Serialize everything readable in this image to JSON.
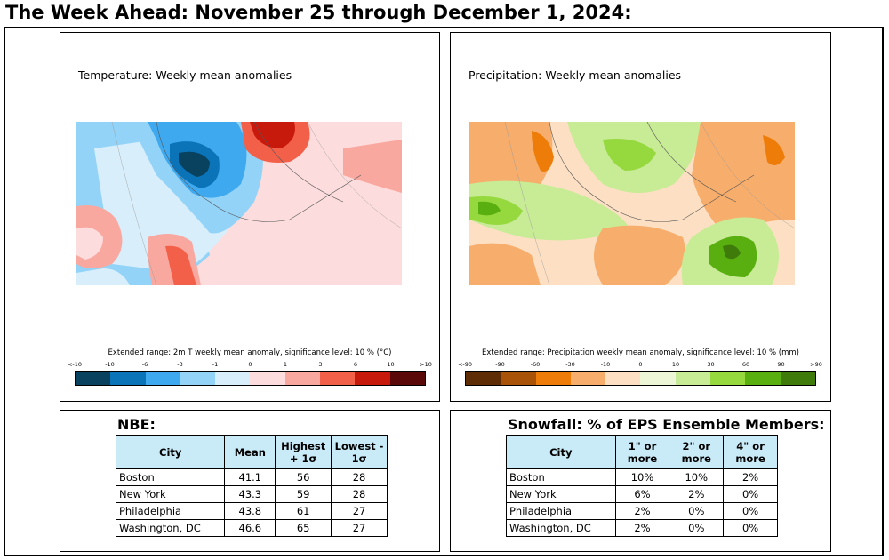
{
  "title": "The Week Ahead: November 25 through December 1, 2024:",
  "temperature_panel": {
    "map_title": "Temperature: Weekly mean anomalies",
    "colorbar_label": "Extended range: 2m T weekly mean anomaly, significance level: 10 % (°C)",
    "ticks": [
      "<-10",
      "-10",
      "-6",
      "-3",
      "-1",
      "0",
      "1",
      "3",
      "6",
      "10",
      ">10"
    ],
    "colors": [
      "#08425f",
      "#0b73b8",
      "#3fa9ef",
      "#93d3f7",
      "#d8eefb",
      "#fcdcdc",
      "#f9a8a0",
      "#f3604a",
      "#c81a0c",
      "#5a0808"
    ]
  },
  "precip_panel": {
    "map_title": "Precipitation: Weekly mean anomalies",
    "colorbar_label": "Extended range: Precipitation weekly mean anomaly, significance level: 10 % (mm)",
    "ticks": [
      "<-90",
      "-90",
      "-60",
      "-30",
      "-10",
      "0",
      "10",
      "30",
      "60",
      "90",
      ">90"
    ],
    "colors": [
      "#5e2d06",
      "#a85307",
      "#ed7d08",
      "#f7ad6c",
      "#fde0c3",
      "#edf7d7",
      "#c8eb96",
      "#96d93f",
      "#5aaf10",
      "#3e7b0a"
    ]
  },
  "nbe_table": {
    "heading": "NBE:",
    "headers": [
      "City",
      "Mean",
      "Highest + 1σ",
      "Lowest - 1σ"
    ],
    "rows": [
      [
        "Boston",
        "41.1",
        "56",
        "28"
      ],
      [
        "New York",
        "43.3",
        "59",
        "28"
      ],
      [
        "Philadelphia",
        "43.8",
        "61",
        "27"
      ],
      [
        "Washington, DC",
        "46.6",
        "65",
        "27"
      ]
    ]
  },
  "snow_table": {
    "heading": "Snowfall: % of EPS Ensemble Members:",
    "headers": [
      "City",
      "1\" or more",
      "2\" or more",
      "4\" or more"
    ],
    "rows": [
      [
        "Boston",
        "10%",
        "10%",
        "2%"
      ],
      [
        "New York",
        "6%",
        "2%",
        "0%"
      ],
      [
        "Philadelphia",
        "2%",
        "0%",
        "0%"
      ],
      [
        "Washington, DC",
        "2%",
        "0%",
        "0%"
      ]
    ]
  }
}
